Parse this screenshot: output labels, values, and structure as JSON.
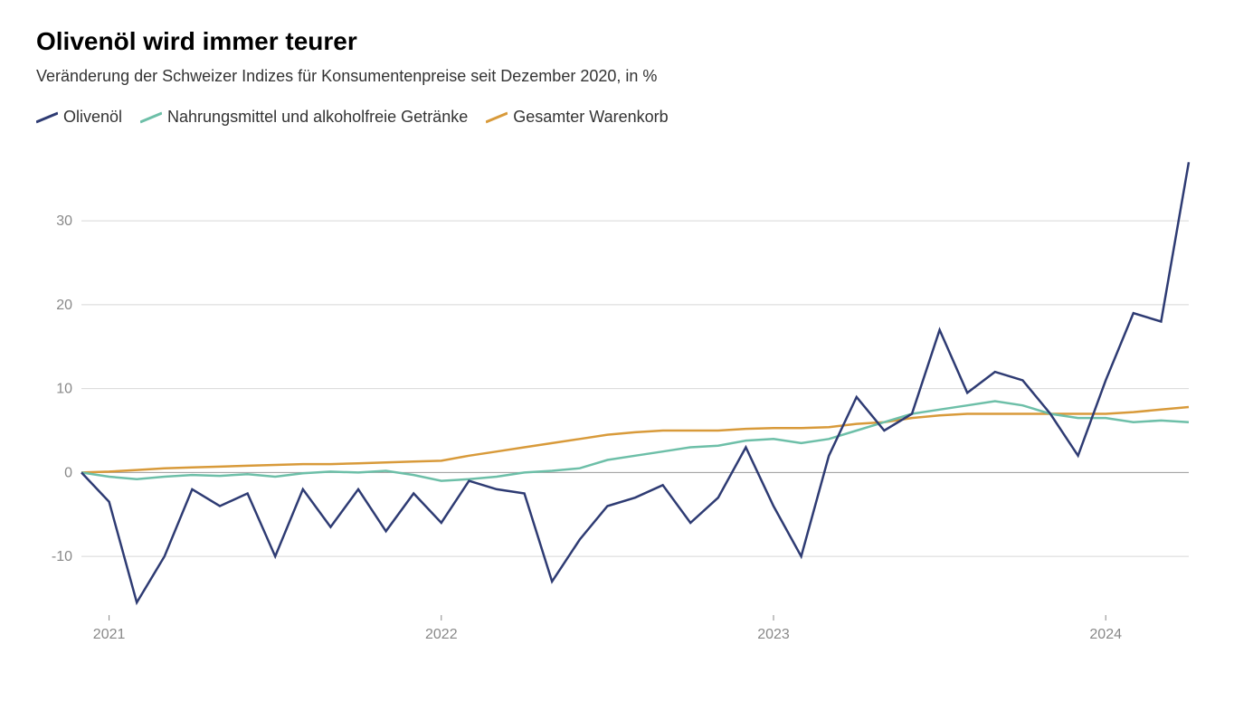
{
  "chart": {
    "type": "line",
    "title": "Olivenöl wird immer teurer",
    "subtitle": "Veränderung der Schweizer Indizes für Konsumentenpreise seit Dezember 2020, in %",
    "background_color": "#ffffff",
    "title_fontsize": 28,
    "subtitle_fontsize": 18,
    "axis_label_fontsize": 16,
    "axis_label_color": "#888888",
    "grid_color": "#d8d8d8",
    "zero_line_color": "#999999",
    "line_width": 2.5,
    "ylim": [
      -17,
      38
    ],
    "ytick_step": 10,
    "yticks": [
      -10,
      0,
      10,
      20,
      30
    ],
    "x_start_label": "2021",
    "xticks": [
      "2021",
      "2022",
      "2023",
      "2024"
    ],
    "xtick_positions": [
      1,
      13,
      25,
      37
    ],
    "n_points": 41,
    "legend": [
      {
        "label": "Olivenöl",
        "color": "#2e3b73"
      },
      {
        "label": "Nahrungsmittel und alkoholfreie Getränke",
        "color": "#6dbfa8"
      },
      {
        "label": "Gesamter Warenkorb",
        "color": "#d89a3a"
      }
    ],
    "series": {
      "olivenol": {
        "color": "#2e3b73",
        "values": [
          0,
          -3.5,
          -15.5,
          -10,
          -2,
          -4,
          -2.5,
          -10,
          -2,
          -6.5,
          -2,
          -7,
          -2.5,
          -6,
          -1,
          -2,
          -2.5,
          -13,
          -8,
          -4,
          -3,
          -1.5,
          -6,
          -3,
          3,
          -4,
          -10,
          2,
          9,
          5,
          7,
          17,
          9.5,
          12,
          11,
          7,
          2,
          11,
          19,
          18,
          37
        ]
      },
      "nahrungsmittel": {
        "color": "#6dbfa8",
        "values": [
          0,
          -0.5,
          -0.8,
          -0.5,
          -0.3,
          -0.4,
          -0.2,
          -0.5,
          -0.1,
          0.1,
          0,
          0.2,
          -0.3,
          -1,
          -0.8,
          -0.5,
          0,
          0.2,
          0.5,
          1.5,
          2,
          2.5,
          3,
          3.2,
          3.8,
          4,
          3.5,
          4,
          5,
          6,
          7,
          7.5,
          8,
          8.5,
          8,
          7,
          6.5,
          6.5,
          6,
          6.2,
          6
        ]
      },
      "gesamter": {
        "color": "#d89a3a",
        "values": [
          0,
          0.1,
          0.3,
          0.5,
          0.6,
          0.7,
          0.8,
          0.9,
          1,
          1,
          1.1,
          1.2,
          1.3,
          1.4,
          2,
          2.5,
          3,
          3.5,
          4,
          4.5,
          4.8,
          5,
          5,
          5,
          5.2,
          5.3,
          5.3,
          5.4,
          5.8,
          6,
          6.5,
          6.8,
          7,
          7,
          7,
          7,
          7,
          7,
          7.2,
          7.5,
          7.8
        ]
      }
    }
  }
}
